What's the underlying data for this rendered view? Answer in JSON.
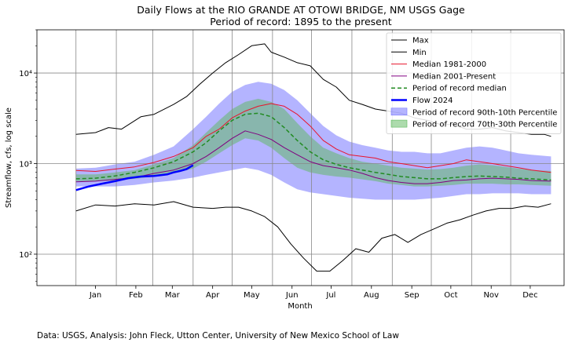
{
  "chart_data": {
    "type": "line",
    "title": "Daily Flows at the RIO GRANDE AT OTOWI BRIDGE, NM USGS Gage",
    "subtitle": "Period of record: 1895 to the present",
    "xlabel": "Month",
    "ylabel": "Streamflow, cfs, log scale",
    "yscale": "log",
    "ylim": [
      45,
      30000
    ],
    "xlim": [
      -30,
      375
    ],
    "grid": true,
    "legend_placement": "top-right",
    "x_tick_labels": [
      "Jan",
      "Feb",
      "Mar",
      "Apr",
      "May",
      "Jun",
      "Jul",
      "Aug",
      "Sep",
      "Oct",
      "Nov",
      "Dec"
    ],
    "x_tick_days": [
      15,
      46,
      74,
      105,
      135,
      166,
      196,
      227,
      258,
      288,
      319,
      349
    ],
    "x_grid_days": [
      0,
      31,
      59,
      90,
      120,
      151,
      181,
      212,
      243,
      273,
      304,
      334
    ],
    "y_tick_labels": [
      "10²",
      "10³",
      "10⁴"
    ],
    "y_tick_values": [
      100,
      1000,
      10000
    ],
    "series": [
      {
        "name": "Max",
        "color": "#000000",
        "style": "solid",
        "width": 1,
        "x": [
          0,
          15,
          25,
          35,
          50,
          60,
          75,
          85,
          95,
          105,
          115,
          125,
          135,
          145,
          150,
          160,
          170,
          180,
          190,
          200,
          210,
          220,
          230,
          240,
          250,
          260,
          270,
          280,
          290,
          300,
          310,
          320,
          330,
          340,
          350,
          360,
          365
        ],
        "y": [
          2100,
          2200,
          2500,
          2400,
          3300,
          3500,
          4500,
          5500,
          7500,
          10000,
          13000,
          16000,
          20000,
          21000,
          17000,
          15000,
          13000,
          12000,
          8500,
          7000,
          5000,
          4500,
          4000,
          3800,
          3600,
          3200,
          3000,
          2700,
          2700,
          2400,
          2400,
          2500,
          2300,
          2200,
          2100,
          2100,
          2000
        ]
      },
      {
        "name": "Min",
        "color": "#000000",
        "style": "solid",
        "width": 1,
        "x": [
          0,
          15,
          30,
          45,
          60,
          75,
          90,
          105,
          115,
          125,
          135,
          145,
          155,
          165,
          175,
          185,
          195,
          205,
          215,
          225,
          235,
          245,
          255,
          265,
          275,
          285,
          295,
          305,
          315,
          325,
          335,
          345,
          355,
          365
        ],
        "y": [
          300,
          350,
          340,
          360,
          350,
          380,
          330,
          320,
          330,
          330,
          300,
          260,
          200,
          130,
          90,
          65,
          65,
          85,
          115,
          105,
          150,
          165,
          135,
          165,
          190,
          220,
          240,
          270,
          300,
          320,
          320,
          340,
          330,
          360
        ]
      },
      {
        "name": "Median 1981-2000",
        "color": "#e8142c",
        "style": "solid",
        "width": 1,
        "x": [
          0,
          15,
          30,
          45,
          60,
          75,
          90,
          100,
          110,
          120,
          130,
          140,
          150,
          160,
          170,
          180,
          190,
          200,
          210,
          220,
          230,
          240,
          250,
          260,
          270,
          280,
          290,
          300,
          310,
          320,
          330,
          340,
          350,
          365
        ],
        "y": [
          840,
          820,
          870,
          920,
          1030,
          1200,
          1500,
          2000,
          2400,
          3200,
          3800,
          4300,
          4600,
          4300,
          3500,
          2600,
          1800,
          1450,
          1250,
          1200,
          1150,
          1050,
          1000,
          950,
          900,
          950,
          1000,
          1100,
          1050,
          1000,
          950,
          900,
          850,
          800
        ]
      },
      {
        "name": "Median 2001-Present",
        "color": "#800080",
        "style": "solid",
        "width": 1,
        "x": [
          0,
          15,
          30,
          45,
          60,
          75,
          90,
          100,
          110,
          120,
          130,
          140,
          150,
          160,
          170,
          180,
          190,
          200,
          210,
          220,
          230,
          240,
          250,
          260,
          270,
          280,
          290,
          300,
          310,
          320,
          330,
          340,
          350,
          365
        ],
        "y": [
          630,
          640,
          670,
          700,
          780,
          850,
          1000,
          1200,
          1500,
          1900,
          2300,
          2100,
          1850,
          1500,
          1250,
          1050,
          950,
          900,
          850,
          780,
          700,
          650,
          620,
          600,
          600,
          620,
          650,
          660,
          680,
          690,
          680,
          670,
          650,
          640
        ]
      },
      {
        "name": "Period of record median",
        "color": "#228b22",
        "style": "dashed",
        "width": 1.5,
        "x": [
          0,
          15,
          30,
          45,
          60,
          75,
          90,
          100,
          110,
          120,
          130,
          140,
          150,
          160,
          170,
          180,
          190,
          200,
          210,
          220,
          230,
          240,
          250,
          260,
          270,
          280,
          290,
          300,
          310,
          320,
          330,
          340,
          350,
          365
        ],
        "y": [
          680,
          690,
          730,
          800,
          900,
          1050,
          1350,
          1700,
          2300,
          3000,
          3500,
          3600,
          3300,
          2500,
          1800,
          1350,
          1100,
          980,
          900,
          850,
          800,
          760,
          720,
          700,
          680,
          680,
          700,
          720,
          730,
          720,
          710,
          690,
          680,
          660
        ]
      },
      {
        "name": "Flow 2024",
        "color": "#0000ff",
        "style": "solid",
        "width": 2.5,
        "x": [
          0,
          10,
          20,
          30,
          40,
          50,
          60,
          70,
          75,
          80,
          85,
          90
        ],
        "y": [
          510,
          560,
          600,
          640,
          690,
          720,
          730,
          760,
          800,
          830,
          870,
          960
        ]
      }
    ],
    "bands": [
      {
        "name": "Period of record 90th-10th Percentile",
        "color": "#7777ff",
        "opacity": 0.55,
        "x": [
          0,
          15,
          30,
          45,
          60,
          75,
          90,
          100,
          110,
          120,
          130,
          140,
          150,
          160,
          170,
          180,
          190,
          200,
          210,
          220,
          230,
          240,
          250,
          260,
          270,
          280,
          290,
          300,
          310,
          320,
          330,
          340,
          350,
          365
        ],
        "upper": [
          880,
          900,
          980,
          1050,
          1250,
          1550,
          2400,
          3300,
          4600,
          6200,
          7400,
          8000,
          7600,
          6500,
          5000,
          3600,
          2600,
          2050,
          1750,
          1600,
          1500,
          1400,
          1350,
          1350,
          1300,
          1300,
          1400,
          1500,
          1550,
          1500,
          1400,
          1300,
          1250,
          1200
        ],
        "lower": [
          560,
          560,
          560,
          580,
          620,
          650,
          700,
          750,
          800,
          850,
          900,
          850,
          750,
          620,
          520,
          480,
          460,
          440,
          420,
          410,
          400,
          400,
          400,
          400,
          410,
          420,
          440,
          460,
          460,
          470,
          470,
          470,
          460,
          460
        ]
      },
      {
        "name": "Period of record 70th-30th Percentile",
        "color": "#5cb85c",
        "opacity": 0.5,
        "x": [
          0,
          15,
          30,
          45,
          60,
          75,
          90,
          100,
          110,
          120,
          130,
          140,
          150,
          160,
          170,
          180,
          190,
          200,
          210,
          220,
          230,
          240,
          250,
          260,
          270,
          280,
          290,
          300,
          310,
          320,
          330,
          340,
          350,
          365
        ],
        "upper": [
          760,
          760,
          800,
          850,
          980,
          1150,
          1600,
          2200,
          3000,
          4000,
          4800,
          5200,
          4800,
          4000,
          2800,
          2000,
          1500,
          1300,
          1150,
          1050,
          1000,
          950,
          900,
          880,
          860,
          870,
          900,
          950,
          980,
          960,
          920,
          880,
          850,
          830
        ],
        "lower": [
          640,
          640,
          650,
          680,
          720,
          780,
          880,
          1050,
          1300,
          1600,
          1900,
          1800,
          1500,
          1150,
          900,
          800,
          750,
          720,
          700,
          670,
          640,
          600,
          580,
          560,
          560,
          570,
          580,
          600,
          600,
          600,
          590,
          590,
          580,
          570
        ]
      }
    ],
    "legend": [
      "Max",
      "Min",
      "Median 1981-2000",
      "Median 2001-Present",
      "Period of record median",
      "Flow 2024",
      "Period of record 90th-10th Percentile",
      "Period of record 70th-30th Percentile"
    ]
  },
  "footer": "Data: USGS, Analysis: John Fleck, Utton Center, University of New Mexico School of Law"
}
